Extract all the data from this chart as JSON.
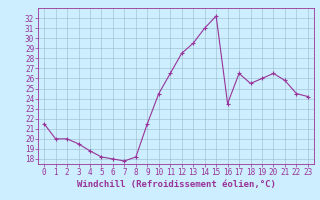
{
  "x": [
    0,
    1,
    2,
    3,
    4,
    5,
    6,
    7,
    8,
    9,
    10,
    11,
    12,
    13,
    14,
    15,
    16,
    17,
    18,
    19,
    20,
    21,
    22,
    23
  ],
  "y": [
    21.5,
    20.0,
    20.0,
    19.5,
    18.8,
    18.2,
    18.0,
    17.8,
    18.2,
    21.5,
    24.5,
    26.5,
    28.5,
    29.5,
    31.0,
    32.2,
    23.5,
    26.5,
    25.5,
    26.0,
    26.5,
    25.8,
    24.5,
    24.2
  ],
  "ylim": [
    17.5,
    33
  ],
  "xlim": [
    -0.5,
    23.5
  ],
  "yticks": [
    18,
    19,
    20,
    21,
    22,
    23,
    24,
    25,
    26,
    27,
    28,
    29,
    30,
    31,
    32
  ],
  "xticks": [
    0,
    1,
    2,
    3,
    4,
    5,
    6,
    7,
    8,
    9,
    10,
    11,
    12,
    13,
    14,
    15,
    16,
    17,
    18,
    19,
    20,
    21,
    22,
    23
  ],
  "xlabel": "Windchill (Refroidissement éolien,°C)",
  "line_color": "#993399",
  "marker": "+",
  "bg_color": "#cceeff",
  "grid_color": "#99bbcc",
  "title_fontsize": 6,
  "xlabel_fontsize": 6.5,
  "tick_fontsize": 5.5
}
